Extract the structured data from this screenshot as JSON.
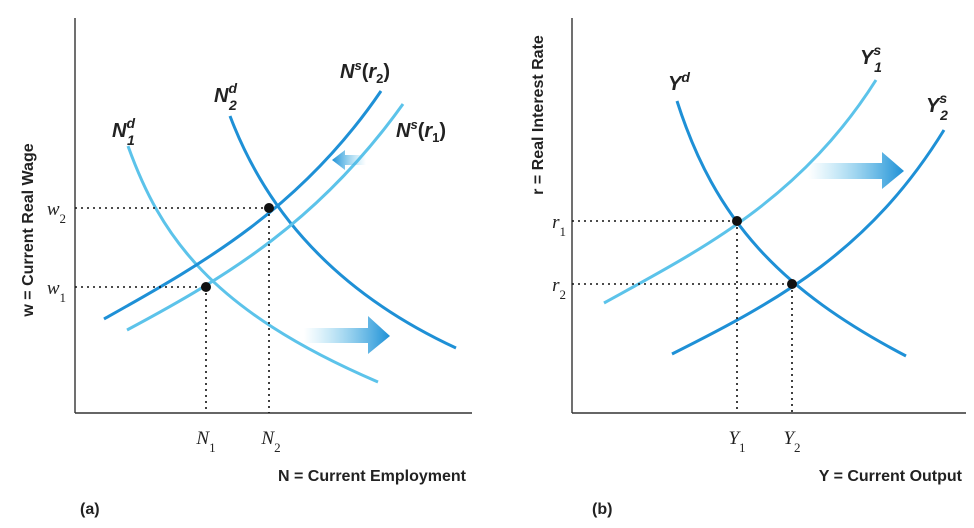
{
  "colors": {
    "dark_curve": "#1e90d6",
    "light_curve": "#5cc3ea",
    "axis": "#333333",
    "point": "#111111"
  },
  "panel_a": {
    "panel_label": "(a)",
    "y_axis_label": "w = Current Real Wage",
    "x_axis_label": "N = Current Employment",
    "y_ticks": [
      "w2",
      "w1"
    ],
    "x_ticks": [
      "N1",
      "N2"
    ],
    "curves": {
      "labor_demand_1": "N1d",
      "labor_demand_2": "N2d",
      "labor_supply_r2": "Ns(r2)",
      "labor_supply_r1": "Ns(r1)"
    },
    "arrows": [
      "shift-left",
      "shift-right"
    ]
  },
  "panel_b": {
    "panel_label": "(b)",
    "y_axis_label": "r = Real Interest Rate",
    "x_axis_label": "Y = Current Output",
    "y_ticks": [
      "r1",
      "r2"
    ],
    "x_ticks": [
      "Y1",
      "Y2"
    ],
    "curves": {
      "demand": "Yd",
      "supply_1": "Y1s",
      "supply_2": "Y2s"
    },
    "arrows": [
      "shift-right"
    ]
  }
}
